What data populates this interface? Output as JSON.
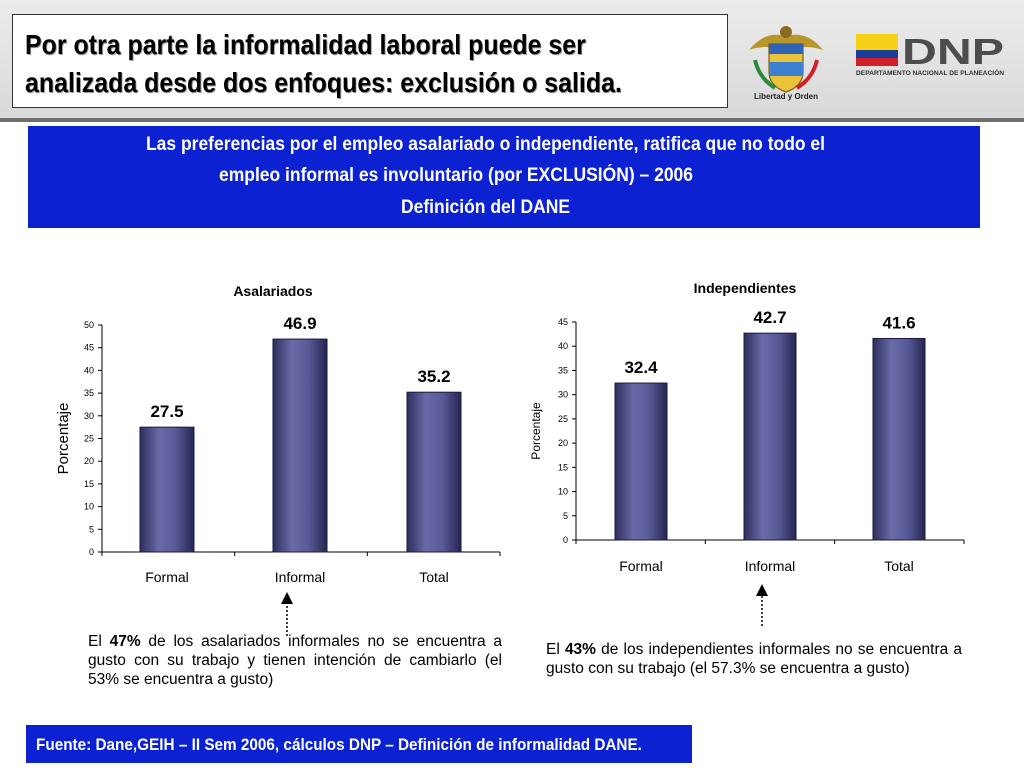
{
  "title": {
    "line1": "Por otra parte la informalidad laboral puede ser",
    "line2": "analizada desde dos enfoques: exclusión o salida."
  },
  "logos": {
    "crest_caption": "Libertad y Orden",
    "dnp_name": "DNP",
    "dnp_full": "DEPARTAMENTO NACIONAL DE PLANEACIÓN",
    "colors": {
      "yellow": "#f7d117",
      "blue": "#1b3f99",
      "red": "#d11f2a",
      "gray": "#4d4d4d"
    }
  },
  "banner": {
    "line1": "Las preferencias por el empleo asalariado o independiente, ratifica que no todo el",
    "line2": "empleo informal es involuntario (por EXCLUSIÓN) – 2006",
    "line3": "Definición del DANE"
  },
  "chart_data": [
    {
      "type": "bar",
      "title": "Asalariados",
      "ylabel": "Porcentaje",
      "xlabel": "",
      "categories": [
        "Formal",
        "Informal",
        "Total"
      ],
      "values": [
        27.5,
        46.9,
        35.2
      ],
      "ylim": [
        0,
        50
      ],
      "yticks": [
        0,
        5,
        10,
        15,
        20,
        25,
        30,
        35,
        40,
        45,
        50
      ],
      "grid": false
    },
    {
      "type": "bar",
      "title": "Independientes",
      "ylabel": "Porcentaje",
      "xlabel": "",
      "categories": [
        "Formal",
        "Informal",
        "Total"
      ],
      "values": [
        32.4,
        42.7,
        41.6
      ],
      "ylim": [
        0,
        45
      ],
      "yticks": [
        0,
        5,
        10,
        15,
        20,
        25,
        30,
        35,
        40,
        45
      ],
      "grid": false
    }
  ],
  "notes": {
    "left": {
      "prefix": "El ",
      "highlight": "47%",
      "rest": " de los asalariados informales no se encuentra a gusto con su trabajo y tienen intención de cambiarlo (el 53% se encuentra a gusto)"
    },
    "right": {
      "prefix": "El ",
      "highlight": "43%",
      "rest": " de los independientes informales no se encuentra a gusto con su trabajo (el 57.3% se encuentra a gusto)"
    }
  },
  "footer": "Fuente: Dane,GEIH – II Sem 2006, cálculos DNP – Definición de informalidad DANE."
}
